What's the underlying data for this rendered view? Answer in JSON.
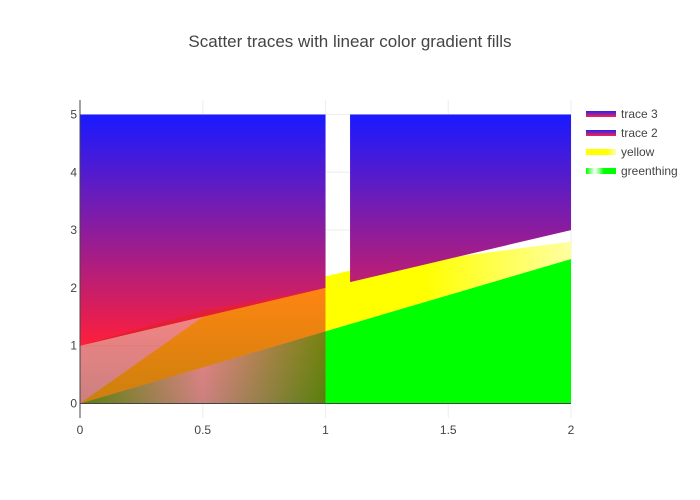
{
  "chart_data": {
    "type": "area",
    "title": "Scatter traces with linear color gradient fills",
    "xlabel": "",
    "ylabel": "",
    "xlim": [
      0,
      2
    ],
    "ylim": [
      -0.25,
      5.25
    ],
    "x_ticks": [
      "0",
      "0.5",
      "1",
      "1.5",
      "2"
    ],
    "y_ticks": [
      "0",
      "1",
      "2",
      "3",
      "4",
      "5"
    ],
    "grid": true,
    "legend_position": "top-right",
    "series": [
      {
        "name": "greenthing",
        "fill": "tozeroy",
        "x": [
          0,
          2
        ],
        "y": [
          0,
          2.5
        ],
        "gradient": "horizontal",
        "stops": [
          {
            "at": 0.0,
            "color": "#00ff00"
          },
          {
            "at": 0.25,
            "color": "#ffffff"
          },
          {
            "at": 0.5,
            "color": "#00ff00"
          },
          {
            "at": 1.0,
            "color": "#00ff00"
          }
        ]
      },
      {
        "name": "yellow",
        "fill": "tonexty",
        "x": [
          0,
          0.5,
          1,
          1.1,
          2
        ],
        "y": [
          0,
          1.5,
          2.2,
          2.3,
          2.8
        ],
        "gradient": "horizontal",
        "stops": [
          {
            "at": 0.0,
            "color": "#ffff00"
          },
          {
            "at": 0.7,
            "color": "#ffff00"
          },
          {
            "at": 1.0,
            "color": "#ffffa0"
          }
        ]
      },
      {
        "name": "trace 2",
        "fill": "tozeroy",
        "x": [
          0,
          0.5,
          1
        ],
        "y": [
          1,
          1.6,
          2
        ],
        "gradient": "vertical",
        "stops": [
          {
            "at": 0.0,
            "color": "#ff2020"
          },
          {
            "at": 1.0,
            "color": "#a01818"
          }
        ]
      },
      {
        "name": "trace 3",
        "fill": "toself",
        "segments": [
          {
            "x": [
              0,
              1,
              1,
              0
            ],
            "y": [
              5,
              5,
              2,
              1
            ]
          },
          {
            "x": [
              1.1,
              2,
              2,
              1.1
            ],
            "y": [
              5,
              5,
              3,
              2.1
            ]
          }
        ],
        "gradient": "vertical",
        "stops": [
          {
            "at": 0.0,
            "color": "#1a1aff"
          },
          {
            "at": 1.0,
            "color": "#ff1f3a"
          }
        ]
      }
    ],
    "legend": [
      {
        "name": "trace 3",
        "swatch": "blue-red"
      },
      {
        "name": "trace 2",
        "swatch": "blue-red"
      },
      {
        "name": "yellow",
        "swatch": "yellow"
      },
      {
        "name": "greenthing",
        "swatch": "green"
      }
    ]
  }
}
